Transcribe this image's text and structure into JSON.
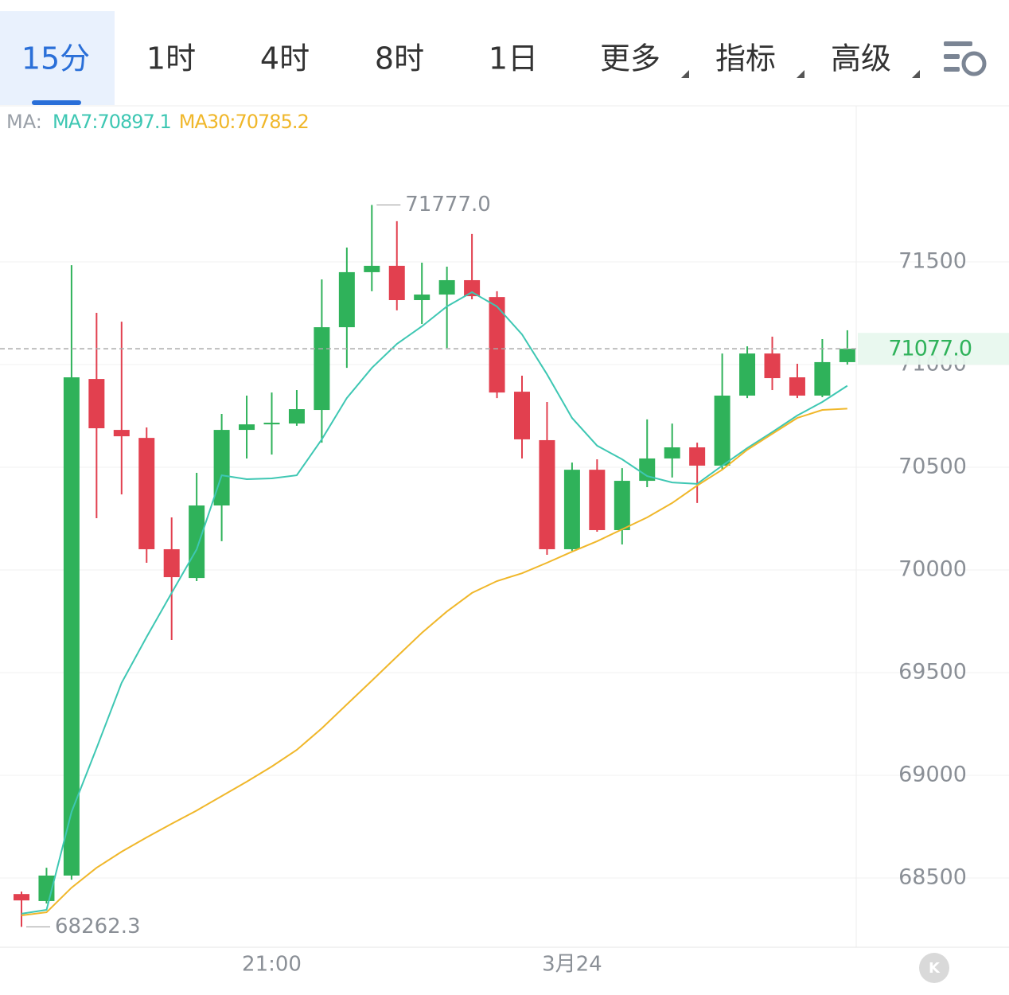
{
  "tabs": [
    "15分",
    "1时",
    "4时",
    "8时",
    "1日",
    "更多",
    "指标",
    "高级"
  ],
  "chart_data": {
    "type": "candlestick",
    "legend_prefix": "MA:",
    "legend_labels": [
      "MA7:70897.1",
      "MA30:70785.2"
    ],
    "categories": [
      null,
      null,
      null,
      null,
      null,
      null,
      null,
      null,
      null,
      null,
      "21:00",
      null,
      null,
      null,
      null,
      null,
      null,
      null,
      null,
      null,
      null,
      null,
      "3月24",
      null,
      null,
      null,
      null,
      null,
      null,
      null,
      null,
      null,
      null,
      null
    ],
    "open": [
      68422,
      68388,
      68512,
      70930,
      70682,
      70643,
      70101,
      69961,
      70314,
      70682,
      70709,
      70713,
      70779,
      71182,
      71450,
      71481,
      71314,
      71341,
      71411,
      71329,
      70868,
      70632,
      70101,
      70488,
      70194,
      70434,
      70543,
      70597,
      70508,
      70849,
      71054,
      70938,
      70849,
      71012
    ],
    "high": [
      68434,
      68550,
      71484,
      71252,
      71209,
      70694,
      70256,
      70473,
      70760,
      70849,
      70864,
      70876,
      71415,
      71570,
      71777,
      71698,
      71496,
      71477,
      71636,
      71357,
      70946,
      70818,
      70523,
      70539,
      70496,
      70733,
      70713,
      70620,
      71054,
      71089,
      71136,
      71004,
      71124,
      71167
    ],
    "low": [
      68262.3,
      68376,
      68492,
      70252,
      70368,
      70035,
      69659,
      69946,
      70140,
      70543,
      70562,
      70702,
      70620,
      70984,
      71357,
      71264,
      71198,
      71081,
      71318,
      70837,
      70543,
      70074,
      70093,
      70186,
      70124,
      70403,
      70450,
      70326,
      70488,
      70837,
      70876,
      70837,
      70841,
      71000
    ],
    "close": [
      68391,
      68512,
      70938,
      70690,
      70651,
      70101,
      69965,
      70314,
      70682,
      70709,
      70717,
      70783,
      71182,
      71450,
      71481,
      71314,
      71341,
      71411,
      71333,
      70864,
      70636,
      70101,
      70488,
      70194,
      70434,
      70543,
      70597,
      70508,
      70849,
      71054,
      70934,
      70849,
      71012,
      71077
    ],
    "up_color": "#2fb25a",
    "down_color": "#e2404f",
    "series": [
      {
        "name": "MA7",
        "color": "#3ec7b3",
        "values": [
          68326,
          68345,
          68822,
          69132,
          69450,
          69674,
          69888,
          70101,
          70461,
          70442,
          70446,
          70461,
          70636,
          70837,
          70984,
          71101,
          71186,
          71283,
          71353,
          71283,
          71147,
          70953,
          70740,
          70605,
          70539,
          70457,
          70426,
          70419,
          70508,
          70593,
          70671,
          70752,
          70818,
          70897.1
        ]
      },
      {
        "name": "MA30",
        "color": "#f0b72a",
        "values": [
          68318,
          68333,
          68453,
          68550,
          68628,
          68698,
          68764,
          68829,
          68899,
          68969,
          69043,
          69124,
          69229,
          69345,
          69461,
          69578,
          69694,
          69798,
          69888,
          69946,
          69984,
          70035,
          70089,
          70140,
          70198,
          70256,
          70326,
          70411,
          70488,
          70585,
          70663,
          70740,
          70779,
          70785.2
        ]
      }
    ],
    "max_marker": {
      "index": 14,
      "value": 71777,
      "label": "71777.0"
    },
    "min_marker": {
      "index": 0,
      "value": 68262.3
    },
    "last_price": {
      "value": 71077,
      "label": "71077.0"
    },
    "ylim": [
      68163,
      72252
    ],
    "yticks": [
      68500,
      69000,
      69500,
      70000,
      70500,
      71000,
      71500
    ],
    "grid": true
  }
}
